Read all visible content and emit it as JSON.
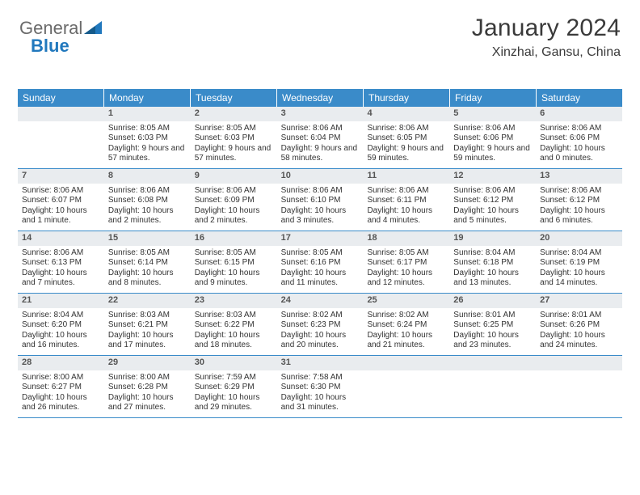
{
  "brand": {
    "part1": "General",
    "part2": "Blue"
  },
  "header": {
    "month_title": "January 2024",
    "location": "Xinzhai, Gansu, China"
  },
  "colors": {
    "header_bg": "#3a8bc9",
    "header_text": "#ffffff",
    "daynum_bg": "#e9ecef",
    "row_border": "#3a8bc9",
    "text": "#333333",
    "logo_gray": "#6a6a6a",
    "logo_blue": "#2178bd"
  },
  "weekdays": [
    "Sunday",
    "Monday",
    "Tuesday",
    "Wednesday",
    "Thursday",
    "Friday",
    "Saturday"
  ],
  "weeks": [
    [
      {
        "num": "",
        "sunrise": "",
        "sunset": "",
        "daylight": ""
      },
      {
        "num": "1",
        "sunrise": "Sunrise: 8:05 AM",
        "sunset": "Sunset: 6:03 PM",
        "daylight": "Daylight: 9 hours and 57 minutes."
      },
      {
        "num": "2",
        "sunrise": "Sunrise: 8:05 AM",
        "sunset": "Sunset: 6:03 PM",
        "daylight": "Daylight: 9 hours and 57 minutes."
      },
      {
        "num": "3",
        "sunrise": "Sunrise: 8:06 AM",
        "sunset": "Sunset: 6:04 PM",
        "daylight": "Daylight: 9 hours and 58 minutes."
      },
      {
        "num": "4",
        "sunrise": "Sunrise: 8:06 AM",
        "sunset": "Sunset: 6:05 PM",
        "daylight": "Daylight: 9 hours and 59 minutes."
      },
      {
        "num": "5",
        "sunrise": "Sunrise: 8:06 AM",
        "sunset": "Sunset: 6:06 PM",
        "daylight": "Daylight: 9 hours and 59 minutes."
      },
      {
        "num": "6",
        "sunrise": "Sunrise: 8:06 AM",
        "sunset": "Sunset: 6:06 PM",
        "daylight": "Daylight: 10 hours and 0 minutes."
      }
    ],
    [
      {
        "num": "7",
        "sunrise": "Sunrise: 8:06 AM",
        "sunset": "Sunset: 6:07 PM",
        "daylight": "Daylight: 10 hours and 1 minute."
      },
      {
        "num": "8",
        "sunrise": "Sunrise: 8:06 AM",
        "sunset": "Sunset: 6:08 PM",
        "daylight": "Daylight: 10 hours and 2 minutes."
      },
      {
        "num": "9",
        "sunrise": "Sunrise: 8:06 AM",
        "sunset": "Sunset: 6:09 PM",
        "daylight": "Daylight: 10 hours and 2 minutes."
      },
      {
        "num": "10",
        "sunrise": "Sunrise: 8:06 AM",
        "sunset": "Sunset: 6:10 PM",
        "daylight": "Daylight: 10 hours and 3 minutes."
      },
      {
        "num": "11",
        "sunrise": "Sunrise: 8:06 AM",
        "sunset": "Sunset: 6:11 PM",
        "daylight": "Daylight: 10 hours and 4 minutes."
      },
      {
        "num": "12",
        "sunrise": "Sunrise: 8:06 AM",
        "sunset": "Sunset: 6:12 PM",
        "daylight": "Daylight: 10 hours and 5 minutes."
      },
      {
        "num": "13",
        "sunrise": "Sunrise: 8:06 AM",
        "sunset": "Sunset: 6:12 PM",
        "daylight": "Daylight: 10 hours and 6 minutes."
      }
    ],
    [
      {
        "num": "14",
        "sunrise": "Sunrise: 8:06 AM",
        "sunset": "Sunset: 6:13 PM",
        "daylight": "Daylight: 10 hours and 7 minutes."
      },
      {
        "num": "15",
        "sunrise": "Sunrise: 8:05 AM",
        "sunset": "Sunset: 6:14 PM",
        "daylight": "Daylight: 10 hours and 8 minutes."
      },
      {
        "num": "16",
        "sunrise": "Sunrise: 8:05 AM",
        "sunset": "Sunset: 6:15 PM",
        "daylight": "Daylight: 10 hours and 9 minutes."
      },
      {
        "num": "17",
        "sunrise": "Sunrise: 8:05 AM",
        "sunset": "Sunset: 6:16 PM",
        "daylight": "Daylight: 10 hours and 11 minutes."
      },
      {
        "num": "18",
        "sunrise": "Sunrise: 8:05 AM",
        "sunset": "Sunset: 6:17 PM",
        "daylight": "Daylight: 10 hours and 12 minutes."
      },
      {
        "num": "19",
        "sunrise": "Sunrise: 8:04 AM",
        "sunset": "Sunset: 6:18 PM",
        "daylight": "Daylight: 10 hours and 13 minutes."
      },
      {
        "num": "20",
        "sunrise": "Sunrise: 8:04 AM",
        "sunset": "Sunset: 6:19 PM",
        "daylight": "Daylight: 10 hours and 14 minutes."
      }
    ],
    [
      {
        "num": "21",
        "sunrise": "Sunrise: 8:04 AM",
        "sunset": "Sunset: 6:20 PM",
        "daylight": "Daylight: 10 hours and 16 minutes."
      },
      {
        "num": "22",
        "sunrise": "Sunrise: 8:03 AM",
        "sunset": "Sunset: 6:21 PM",
        "daylight": "Daylight: 10 hours and 17 minutes."
      },
      {
        "num": "23",
        "sunrise": "Sunrise: 8:03 AM",
        "sunset": "Sunset: 6:22 PM",
        "daylight": "Daylight: 10 hours and 18 minutes."
      },
      {
        "num": "24",
        "sunrise": "Sunrise: 8:02 AM",
        "sunset": "Sunset: 6:23 PM",
        "daylight": "Daylight: 10 hours and 20 minutes."
      },
      {
        "num": "25",
        "sunrise": "Sunrise: 8:02 AM",
        "sunset": "Sunset: 6:24 PM",
        "daylight": "Daylight: 10 hours and 21 minutes."
      },
      {
        "num": "26",
        "sunrise": "Sunrise: 8:01 AM",
        "sunset": "Sunset: 6:25 PM",
        "daylight": "Daylight: 10 hours and 23 minutes."
      },
      {
        "num": "27",
        "sunrise": "Sunrise: 8:01 AM",
        "sunset": "Sunset: 6:26 PM",
        "daylight": "Daylight: 10 hours and 24 minutes."
      }
    ],
    [
      {
        "num": "28",
        "sunrise": "Sunrise: 8:00 AM",
        "sunset": "Sunset: 6:27 PM",
        "daylight": "Daylight: 10 hours and 26 minutes."
      },
      {
        "num": "29",
        "sunrise": "Sunrise: 8:00 AM",
        "sunset": "Sunset: 6:28 PM",
        "daylight": "Daylight: 10 hours and 27 minutes."
      },
      {
        "num": "30",
        "sunrise": "Sunrise: 7:59 AM",
        "sunset": "Sunset: 6:29 PM",
        "daylight": "Daylight: 10 hours and 29 minutes."
      },
      {
        "num": "31",
        "sunrise": "Sunrise: 7:58 AM",
        "sunset": "Sunset: 6:30 PM",
        "daylight": "Daylight: 10 hours and 31 minutes."
      },
      {
        "num": "",
        "sunrise": "",
        "sunset": "",
        "daylight": ""
      },
      {
        "num": "",
        "sunrise": "",
        "sunset": "",
        "daylight": ""
      },
      {
        "num": "",
        "sunrise": "",
        "sunset": "",
        "daylight": ""
      }
    ]
  ]
}
